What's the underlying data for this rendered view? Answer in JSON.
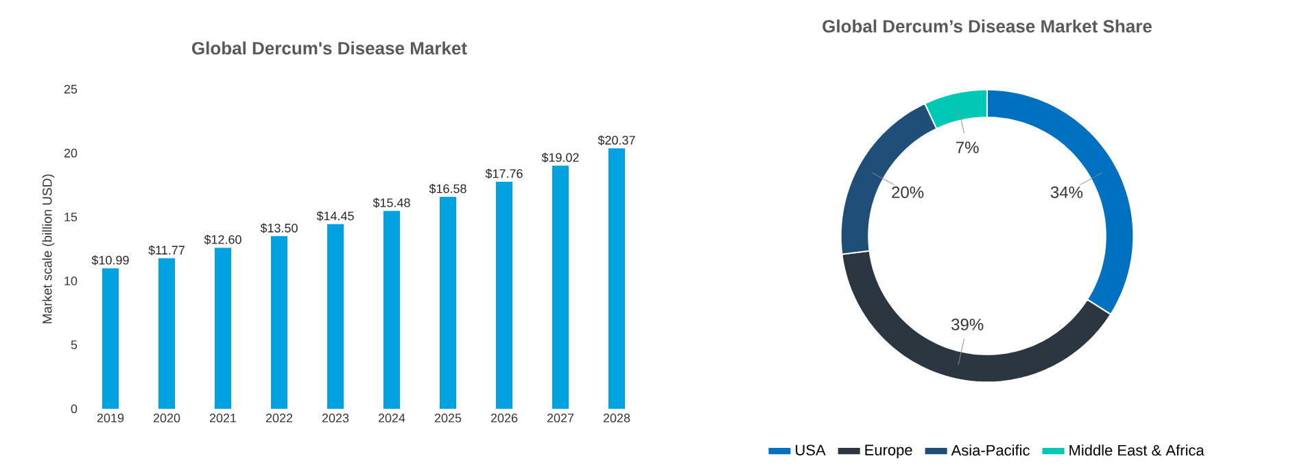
{
  "chart_data": [
    {
      "type": "bar",
      "title": "Global Dercum's Disease Market",
      "ylabel": "Market scale (billion USD)",
      "categories": [
        "2019",
        "2020",
        "2021",
        "2022",
        "2023",
        "2024",
        "2025",
        "2026",
        "2027",
        "2028"
      ],
      "values": [
        10.99,
        11.77,
        12.6,
        13.5,
        14.45,
        15.48,
        16.58,
        17.76,
        19.02,
        20.37
      ],
      "value_labels": [
        "$10.99",
        "$11.77",
        "$12.60",
        "$13.50",
        "$14.45",
        "$15.48",
        "$16.58",
        "$17.76",
        "$19.02",
        "$20.37"
      ],
      "color": "#00a3e0",
      "ylim": [
        0,
        25
      ],
      "yticks": [
        0,
        5,
        10,
        15,
        20,
        25
      ]
    },
    {
      "type": "donut",
      "title": "Global Dercum’s Disease Market Share",
      "categories": [
        "USA",
        "Europe",
        "Asia-Pacific",
        "Middle East & Africa"
      ],
      "values": [
        34,
        39,
        20,
        7
      ],
      "value_labels": [
        "34%",
        "39%",
        "20%",
        "7%"
      ],
      "colors": [
        "#0070c0",
        "#2b3640",
        "#1f4e79",
        "#00c8b4"
      ],
      "legend": "bottom"
    }
  ]
}
